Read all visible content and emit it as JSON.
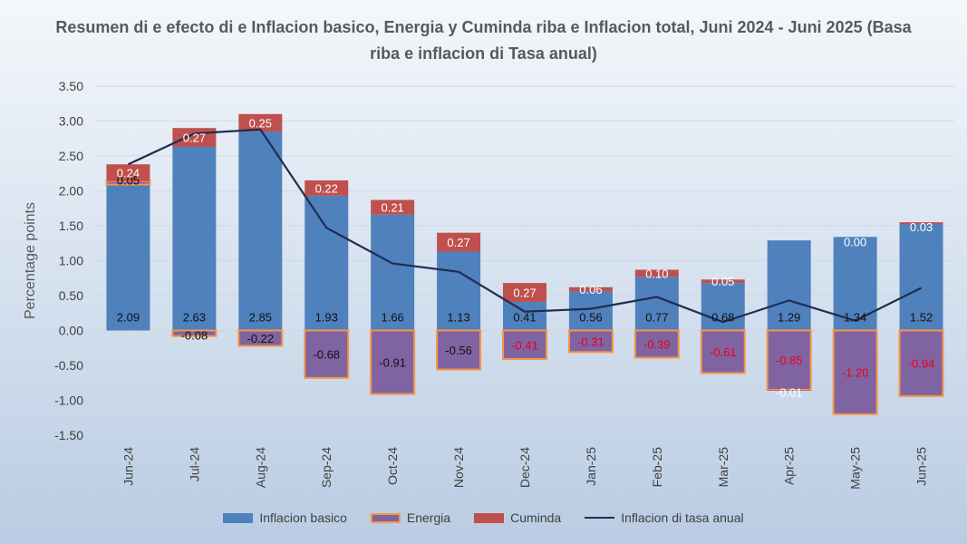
{
  "chart_data": {
    "type": "bar",
    "title": "Resumen di e efecto di e Inflacion basico, Energia y Cuminda riba e Inflacion total, Juni 2024 - Juni 2025 (Basa riba e inflacion di Tasa anual)",
    "ylabel": "Percentage points",
    "xlabel": "",
    "ylim": [
      -1.5,
      3.5
    ],
    "yticks": [
      "3.50",
      "3.00",
      "2.50",
      "2.00",
      "1.50",
      "1.00",
      "0.50",
      "0.00",
      "-0.50",
      "-1.00",
      "-1.50"
    ],
    "yticks_values": [
      3.5,
      3.0,
      2.5,
      2.0,
      1.5,
      1.0,
      0.5,
      0.0,
      -0.5,
      -1.0,
      -1.5
    ],
    "categories": [
      "Jun-24",
      "Jul-24",
      "Aug-24",
      "Sep-24",
      "Oct-24",
      "Nov-24",
      "Dec-24",
      "Jan-25",
      "Feb-25",
      "Mar-25",
      "Apr-25",
      "May-25",
      "Jun-25"
    ],
    "series": [
      {
        "name": "Inflacion basico",
        "color": "#4f81bd",
        "values": [
          2.09,
          2.63,
          2.85,
          1.93,
          1.66,
          1.13,
          0.41,
          0.56,
          0.77,
          0.68,
          1.29,
          1.34,
          1.52
        ],
        "labels": [
          "2.09",
          "2.63",
          "2.85",
          "1.93",
          "1.66",
          "1.13",
          "0.41",
          "0.56",
          "0.77",
          "0.68",
          "1.29",
          "1.34",
          "1.52"
        ]
      },
      {
        "name": "Energia",
        "color": "#8064a2",
        "border": "#f79646",
        "values": [
          0.05,
          -0.08,
          -0.22,
          -0.68,
          -0.91,
          -0.56,
          -0.41,
          -0.31,
          -0.39,
          -0.61,
          -0.85,
          -1.2,
          -0.94
        ],
        "labels": [
          "0.05",
          "-0.08",
          "-0.22",
          "-0.68",
          "-0.91",
          "-0.56",
          "-0.41",
          "-0.31",
          "-0.39",
          "-0.61",
          "-0.85",
          "-1.20",
          "-0.94"
        ]
      },
      {
        "name": "Cuminda",
        "color": "#c0504d",
        "values": [
          0.24,
          0.27,
          0.25,
          0.22,
          0.21,
          0.27,
          0.27,
          0.06,
          0.1,
          0.05,
          -0.01,
          0.0,
          0.03
        ],
        "labels": [
          "0.24",
          "0.27",
          "0.25",
          "0.22",
          "0.21",
          "0.27",
          "0.27",
          "0.06",
          "0.10",
          "0.05",
          "-0.01",
          "0.00",
          "0.03"
        ]
      },
      {
        "name": "Inflacion di tasa anual",
        "type": "line",
        "color": "#1f2d50",
        "values": [
          2.38,
          2.82,
          2.88,
          1.47,
          0.96,
          0.84,
          0.27,
          0.31,
          0.48,
          0.12,
          0.43,
          0.14,
          0.61
        ]
      }
    ],
    "legend": "bottom",
    "grid": true
  }
}
